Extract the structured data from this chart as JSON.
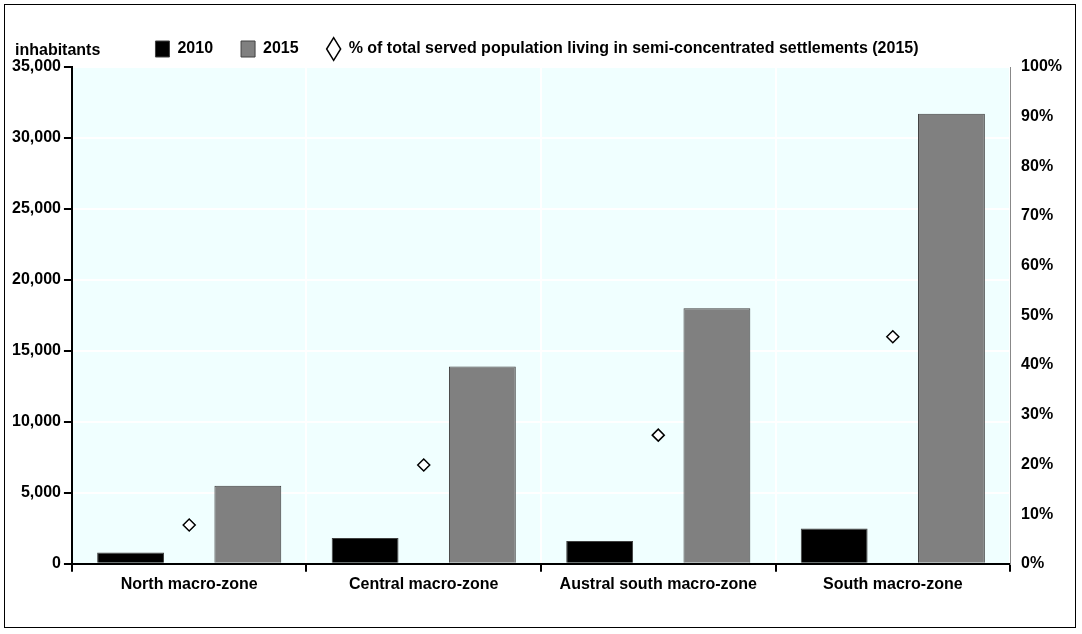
{
  "chart_data": {
    "type": "bar",
    "ylabel": "inhabitants",
    "categories": [
      "North macro-zone",
      "Central macro-zone",
      "Austral south macro-zone",
      "South macro-zone"
    ],
    "series": [
      {
        "name": "2010",
        "color": "#000000",
        "values": [
          800,
          1820,
          1610,
          2480
        ]
      },
      {
        "name": "2015",
        "color": "#808080",
        "values": [
          5500,
          13900,
          18000,
          31700
        ]
      },
      {
        "name": "% of total served population living in semi-concentrated settlements (2015)",
        "type": "scatter",
        "axis": "y2",
        "color": "#ffffff",
        "marker": "diamond",
        "values": [
          7.8,
          19.9,
          25.9,
          45.7
        ]
      }
    ],
    "ylim": [
      0,
      35000
    ],
    "yticks": [
      {
        "value": 0,
        "label": "0"
      },
      {
        "value": 5000,
        "label": "5,000"
      },
      {
        "value": 10000,
        "label": "10,000"
      },
      {
        "value": 15000,
        "label": "15,000"
      },
      {
        "value": 20000,
        "label": "20,000"
      },
      {
        "value": 25000,
        "label": "25,000"
      },
      {
        "value": 30000,
        "label": "30,000"
      },
      {
        "value": 35000,
        "label": "35,000"
      }
    ],
    "y2lim": [
      0,
      100
    ],
    "y2ticks": [
      {
        "value": 0,
        "label": "0%"
      },
      {
        "value": 10,
        "label": "10%"
      },
      {
        "value": 20,
        "label": "20%"
      },
      {
        "value": 30,
        "label": "30%"
      },
      {
        "value": 40,
        "label": "40%"
      },
      {
        "value": 50,
        "label": "50%"
      },
      {
        "value": 60,
        "label": "60%"
      },
      {
        "value": 70,
        "label": "70%"
      },
      {
        "value": 80,
        "label": "80%"
      },
      {
        "value": 90,
        "label": "90%"
      },
      {
        "value": 100,
        "label": "100%"
      }
    ],
    "grid": true,
    "legend": "top"
  }
}
